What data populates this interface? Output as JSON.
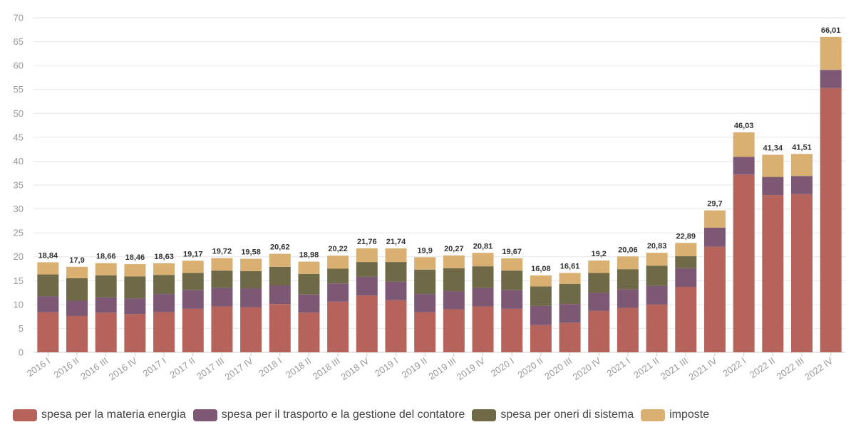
{
  "chart_data": {
    "type": "bar",
    "stacked": true,
    "ylim": [
      0,
      70
    ],
    "yticks": [
      0,
      5,
      10,
      15,
      20,
      25,
      30,
      35,
      40,
      45,
      50,
      55,
      60,
      65,
      70
    ],
    "grid": true,
    "legend_position": "bottom-left",
    "categories": [
      "2016 I",
      "2016 II",
      "2016 III",
      "2016 IV",
      "2017 I",
      "2017 II",
      "2017 III",
      "2017 IV",
      "2018 I",
      "2018 II",
      "2018 III",
      "2018 IV",
      "2019 I",
      "2019 II",
      "2019 III",
      "2019 IV",
      "2020 I",
      "2020 II",
      "2020 III",
      "2020 IV",
      "2021 I",
      "2021 II",
      "2021 III",
      "2021 IV",
      "2022 I",
      "2022 II",
      "2022 III",
      "2022 IV"
    ],
    "totals": [
      "18,84",
      "17,9",
      "18,66",
      "18,46",
      "18,63",
      "19,17",
      "19,72",
      "19,58",
      "20,62",
      "18,98",
      "20,22",
      "21,76",
      "21,74",
      "19,9",
      "20,27",
      "20,81",
      "19,67",
      "16,08",
      "16,61",
      "19,2",
      "20,06",
      "20,83",
      "22,89",
      "29,7",
      "46,03",
      "41,34",
      "41,51",
      "66,01"
    ],
    "series": [
      {
        "name": "spesa per la materia energia",
        "color": "#b5635b",
        "values": [
          8.4,
          7.6,
          8.3,
          8.0,
          8.4,
          9.1,
          9.6,
          9.4,
          10.1,
          8.3,
          10.6,
          11.9,
          10.9,
          8.4,
          9.0,
          9.6,
          9.1,
          5.7,
          6.2,
          8.7,
          9.3,
          10.0,
          13.7,
          22.1,
          37.2,
          32.9,
          33.1,
          55.3
        ]
      },
      {
        "name": "spesa per il trasporto e la gestione del contatore",
        "color": "#7d5874",
        "values": [
          3.3,
          3.2,
          3.2,
          3.3,
          3.8,
          3.9,
          3.9,
          4.0,
          3.9,
          3.8,
          3.8,
          3.9,
          3.9,
          3.8,
          3.8,
          3.9,
          3.9,
          4.0,
          3.9,
          3.8,
          3.9,
          3.9,
          3.9,
          4.0,
          3.7,
          3.8,
          3.8,
          3.8
        ]
      },
      {
        "name": "spesa per oneri di sistema",
        "color": "#6e6a48",
        "values": [
          4.6,
          4.7,
          4.6,
          4.6,
          4.0,
          3.6,
          3.6,
          3.6,
          3.9,
          4.3,
          3.1,
          3.1,
          4.1,
          5.1,
          4.8,
          4.5,
          4.1,
          4.1,
          4.2,
          4.1,
          4.2,
          4.2,
          2.5,
          0.0,
          0.0,
          0.0,
          0.0,
          0.0
        ]
      },
      {
        "name": "imposte",
        "color": "#d9b072",
        "values": [
          2.54,
          2.4,
          2.56,
          2.56,
          2.43,
          2.57,
          2.62,
          2.58,
          2.72,
          2.58,
          2.72,
          2.86,
          2.84,
          2.6,
          2.67,
          2.81,
          2.57,
          2.28,
          2.31,
          2.6,
          2.66,
          2.73,
          2.79,
          3.6,
          5.13,
          4.64,
          4.61,
          6.91
        ]
      }
    ]
  }
}
